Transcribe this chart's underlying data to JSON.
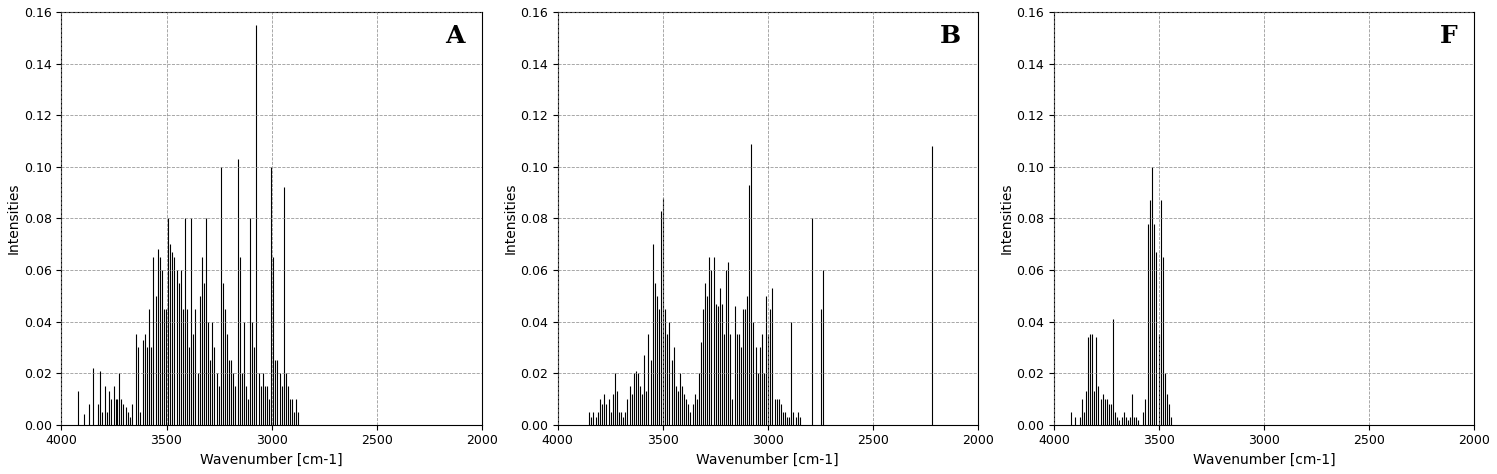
{
  "panels": [
    "A",
    "B",
    "F"
  ],
  "xlim": [
    4000,
    2000
  ],
  "ylim": [
    0,
    0.16
  ],
  "xlabel": "Wavenumber [cm-1]",
  "ylabel": "Intensities",
  "xticks": [
    4000,
    3500,
    3000,
    2500,
    2000
  ],
  "yticks": [
    0.0,
    0.02,
    0.04,
    0.06,
    0.08,
    0.1,
    0.12,
    0.14,
    0.16
  ],
  "spectra": {
    "A": {
      "peaks": [
        [
          3920,
          0.013
        ],
        [
          3895,
          0.004
        ],
        [
          3870,
          0.008
        ],
        [
          3848,
          0.022
        ],
        [
          3825,
          0.008
        ],
        [
          3815,
          0.021
        ],
        [
          3805,
          0.005
        ],
        [
          3795,
          0.015
        ],
        [
          3785,
          0.005
        ],
        [
          3775,
          0.013
        ],
        [
          3762,
          0.01
        ],
        [
          3752,
          0.015
        ],
        [
          3742,
          0.01
        ],
        [
          3735,
          0.01
        ],
        [
          3725,
          0.02
        ],
        [
          3715,
          0.01
        ],
        [
          3705,
          0.008
        ],
        [
          3695,
          0.007
        ],
        [
          3685,
          0.005
        ],
        [
          3673,
          0.003
        ],
        [
          3662,
          0.008
        ],
        [
          3645,
          0.035
        ],
        [
          3635,
          0.03
        ],
        [
          3625,
          0.005
        ],
        [
          3612,
          0.033
        ],
        [
          3600,
          0.035
        ],
        [
          3592,
          0.03
        ],
        [
          3582,
          0.045
        ],
        [
          3572,
          0.03
        ],
        [
          3562,
          0.065
        ],
        [
          3552,
          0.05
        ],
        [
          3542,
          0.068
        ],
        [
          3532,
          0.065
        ],
        [
          3522,
          0.06
        ],
        [
          3512,
          0.045
        ],
        [
          3502,
          0.045
        ],
        [
          3492,
          0.08
        ],
        [
          3482,
          0.07
        ],
        [
          3472,
          0.067
        ],
        [
          3462,
          0.065
        ],
        [
          3452,
          0.06
        ],
        [
          3442,
          0.055
        ],
        [
          3432,
          0.06
        ],
        [
          3422,
          0.045
        ],
        [
          3412,
          0.08
        ],
        [
          3402,
          0.045
        ],
        [
          3392,
          0.03
        ],
        [
          3382,
          0.08
        ],
        [
          3372,
          0.035
        ],
        [
          3362,
          0.045
        ],
        [
          3352,
          0.02
        ],
        [
          3342,
          0.05
        ],
        [
          3332,
          0.065
        ],
        [
          3322,
          0.055
        ],
        [
          3312,
          0.08
        ],
        [
          3302,
          0.04
        ],
        [
          3292,
          0.025
        ],
        [
          3282,
          0.04
        ],
        [
          3272,
          0.03
        ],
        [
          3262,
          0.02
        ],
        [
          3252,
          0.015
        ],
        [
          3242,
          0.1
        ],
        [
          3232,
          0.055
        ],
        [
          3222,
          0.045
        ],
        [
          3212,
          0.035
        ],
        [
          3202,
          0.025
        ],
        [
          3192,
          0.025
        ],
        [
          3182,
          0.02
        ],
        [
          3172,
          0.015
        ],
        [
          3162,
          0.103
        ],
        [
          3152,
          0.065
        ],
        [
          3142,
          0.02
        ],
        [
          3132,
          0.04
        ],
        [
          3122,
          0.015
        ],
        [
          3112,
          0.01
        ],
        [
          3102,
          0.08
        ],
        [
          3092,
          0.04
        ],
        [
          3082,
          0.03
        ],
        [
          3072,
          0.155
        ],
        [
          3062,
          0.02
        ],
        [
          3052,
          0.015
        ],
        [
          3042,
          0.02
        ],
        [
          3032,
          0.015
        ],
        [
          3022,
          0.015
        ],
        [
          3012,
          0.01
        ],
        [
          3002,
          0.1
        ],
        [
          2992,
          0.065
        ],
        [
          2982,
          0.025
        ],
        [
          2972,
          0.025
        ],
        [
          2962,
          0.02
        ],
        [
          2952,
          0.015
        ],
        [
          2942,
          0.092
        ],
        [
          2932,
          0.02
        ],
        [
          2922,
          0.015
        ],
        [
          2912,
          0.01
        ],
        [
          2902,
          0.01
        ],
        [
          2892,
          0.005
        ],
        [
          2882,
          0.01
        ],
        [
          2872,
          0.005
        ]
      ]
    },
    "B": {
      "peaks": [
        [
          3852,
          0.005
        ],
        [
          3842,
          0.003
        ],
        [
          3832,
          0.005
        ],
        [
          3818,
          0.003
        ],
        [
          3808,
          0.005
        ],
        [
          3798,
          0.01
        ],
        [
          3788,
          0.008
        ],
        [
          3778,
          0.012
        ],
        [
          3768,
          0.008
        ],
        [
          3758,
          0.01
        ],
        [
          3748,
          0.005
        ],
        [
          3738,
          0.012
        ],
        [
          3728,
          0.02
        ],
        [
          3718,
          0.013
        ],
        [
          3708,
          0.005
        ],
        [
          3698,
          0.005
        ],
        [
          3688,
          0.003
        ],
        [
          3678,
          0.005
        ],
        [
          3668,
          0.01
        ],
        [
          3658,
          0.015
        ],
        [
          3648,
          0.012
        ],
        [
          3638,
          0.02
        ],
        [
          3628,
          0.021
        ],
        [
          3618,
          0.02
        ],
        [
          3608,
          0.015
        ],
        [
          3598,
          0.012
        ],
        [
          3588,
          0.027
        ],
        [
          3578,
          0.013
        ],
        [
          3568,
          0.035
        ],
        [
          3558,
          0.025
        ],
        [
          3548,
          0.07
        ],
        [
          3538,
          0.055
        ],
        [
          3528,
          0.05
        ],
        [
          3518,
          0.045
        ],
        [
          3508,
          0.083
        ],
        [
          3498,
          0.088
        ],
        [
          3488,
          0.045
        ],
        [
          3478,
          0.035
        ],
        [
          3468,
          0.04
        ],
        [
          3458,
          0.025
        ],
        [
          3448,
          0.03
        ],
        [
          3438,
          0.015
        ],
        [
          3428,
          0.013
        ],
        [
          3418,
          0.02
        ],
        [
          3408,
          0.015
        ],
        [
          3398,
          0.012
        ],
        [
          3388,
          0.01
        ],
        [
          3378,
          0.008
        ],
        [
          3368,
          0.005
        ],
        [
          3358,
          0.008
        ],
        [
          3348,
          0.012
        ],
        [
          3338,
          0.01
        ],
        [
          3328,
          0.02
        ],
        [
          3318,
          0.032
        ],
        [
          3308,
          0.045
        ],
        [
          3298,
          0.055
        ],
        [
          3288,
          0.05
        ],
        [
          3278,
          0.065
        ],
        [
          3268,
          0.06
        ],
        [
          3258,
          0.065
        ],
        [
          3248,
          0.047
        ],
        [
          3238,
          0.046
        ],
        [
          3228,
          0.053
        ],
        [
          3218,
          0.047
        ],
        [
          3208,
          0.035
        ],
        [
          3198,
          0.06
        ],
        [
          3188,
          0.063
        ],
        [
          3178,
          0.035
        ],
        [
          3168,
          0.01
        ],
        [
          3158,
          0.046
        ],
        [
          3148,
          0.035
        ],
        [
          3138,
          0.035
        ],
        [
          3128,
          0.03
        ],
        [
          3118,
          0.045
        ],
        [
          3108,
          0.045
        ],
        [
          3098,
          0.05
        ],
        [
          3088,
          0.093
        ],
        [
          3078,
          0.109
        ],
        [
          3068,
          0.04
        ],
        [
          3058,
          0.03
        ],
        [
          3048,
          0.02
        ],
        [
          3038,
          0.03
        ],
        [
          3028,
          0.035
        ],
        [
          3018,
          0.02
        ],
        [
          3008,
          0.05
        ],
        [
          2998,
          0.035
        ],
        [
          2988,
          0.045
        ],
        [
          2978,
          0.053
        ],
        [
          2968,
          0.01
        ],
        [
          2958,
          0.01
        ],
        [
          2948,
          0.01
        ],
        [
          2938,
          0.008
        ],
        [
          2928,
          0.005
        ],
        [
          2918,
          0.005
        ],
        [
          2908,
          0.003
        ],
        [
          2898,
          0.003
        ],
        [
          2888,
          0.04
        ],
        [
          2878,
          0.005
        ],
        [
          2868,
          0.003
        ],
        [
          2858,
          0.005
        ],
        [
          2848,
          0.003
        ],
        [
          2788,
          0.08
        ],
        [
          2748,
          0.045
        ],
        [
          2738,
          0.06
        ],
        [
          2218,
          0.108
        ]
      ]
    },
    "F": {
      "peaks": [
        [
          3918,
          0.005
        ],
        [
          3898,
          0.003
        ],
        [
          3878,
          0.003
        ],
        [
          3868,
          0.01
        ],
        [
          3858,
          0.005
        ],
        [
          3848,
          0.013
        ],
        [
          3838,
          0.034
        ],
        [
          3828,
          0.035
        ],
        [
          3818,
          0.035
        ],
        [
          3808,
          0.013
        ],
        [
          3798,
          0.034
        ],
        [
          3788,
          0.015
        ],
        [
          3778,
          0.01
        ],
        [
          3768,
          0.012
        ],
        [
          3758,
          0.01
        ],
        [
          3748,
          0.01
        ],
        [
          3738,
          0.008
        ],
        [
          3728,
          0.008
        ],
        [
          3718,
          0.041
        ],
        [
          3708,
          0.005
        ],
        [
          3698,
          0.003
        ],
        [
          3688,
          0.002
        ],
        [
          3678,
          0.003
        ],
        [
          3668,
          0.005
        ],
        [
          3658,
          0.003
        ],
        [
          3648,
          0.002
        ],
        [
          3638,
          0.003
        ],
        [
          3628,
          0.012
        ],
        [
          3618,
          0.003
        ],
        [
          3608,
          0.003
        ],
        [
          3598,
          0.002
        ],
        [
          3578,
          0.005
        ],
        [
          3568,
          0.01
        ],
        [
          3552,
          0.078
        ],
        [
          3542,
          0.087
        ],
        [
          3532,
          0.1
        ],
        [
          3522,
          0.078
        ],
        [
          3512,
          0.067
        ],
        [
          3502,
          0.035
        ],
        [
          3492,
          0.087
        ],
        [
          3482,
          0.065
        ],
        [
          3472,
          0.02
        ],
        [
          3462,
          0.012
        ],
        [
          3452,
          0.008
        ],
        [
          3442,
          0.003
        ]
      ]
    }
  }
}
